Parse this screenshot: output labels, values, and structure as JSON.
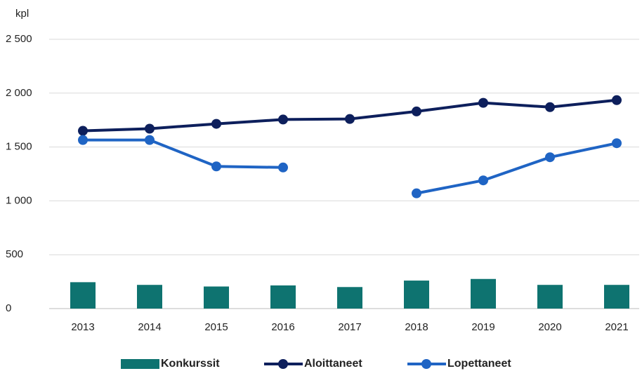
{
  "chart_data": {
    "type": "bar_line",
    "y_label": "kpl",
    "categories": [
      "2013",
      "2014",
      "2015",
      "2016",
      "2017",
      "2018",
      "2019",
      "2020",
      "2021"
    ],
    "series": [
      {
        "name": "Konkurssit",
        "type": "bar",
        "color": "#0e7370",
        "values": [
          245,
          220,
          205,
          215,
          200,
          260,
          275,
          220,
          220
        ]
      },
      {
        "name": "Aloittaneet",
        "type": "line",
        "color": "#0d1f5c",
        "values": [
          1650,
          1670,
          1715,
          1755,
          1760,
          1830,
          1910,
          1870,
          1935
        ]
      },
      {
        "name": "Lopettaneet",
        "type": "line",
        "color": "#1f64c4",
        "values": [
          1565,
          1565,
          1320,
          1310,
          null,
          1070,
          1190,
          1405,
          1535
        ]
      }
    ],
    "ylim": [
      0,
      2500
    ],
    "yticks": [
      0,
      500,
      {
        "value": 1000,
        "label": "1 000"
      },
      {
        "value": 1500,
        "label": "1 500"
      },
      {
        "value": 2000,
        "label": "2 000"
      },
      {
        "value": 2500,
        "label": "2 500"
      }
    ],
    "grid": true,
    "legend": "bottom"
  }
}
